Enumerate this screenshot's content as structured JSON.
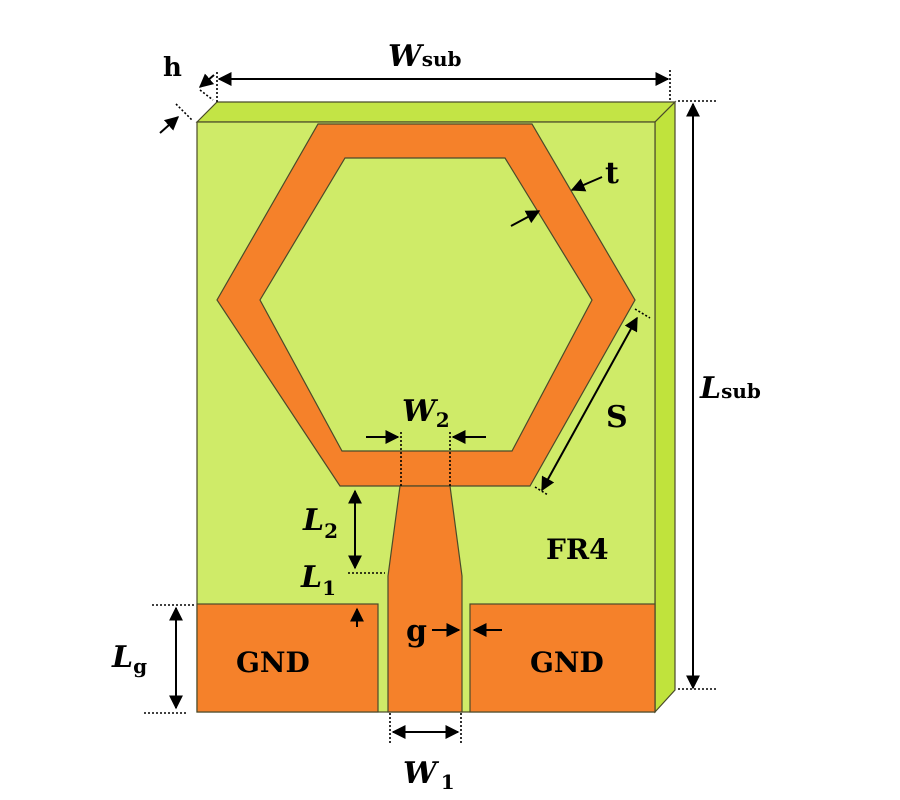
{
  "colors": {
    "substrate_face": "#cfeb68",
    "substrate_top": "#c3e445",
    "substrate_side": "#c0e33c",
    "copper": "#f5812a",
    "outline": "#4a4a2a"
  },
  "labels": {
    "h": "h",
    "w_sub": {
      "main": "W",
      "sub": "sub"
    },
    "l_sub": {
      "main": "L",
      "sub": "sub"
    },
    "t": "t",
    "s": "S",
    "w2": {
      "main": "W",
      "sub": "2"
    },
    "l2": {
      "main": "L",
      "sub": "2"
    },
    "l1": {
      "main": "L",
      "sub": "1"
    },
    "lg": {
      "main": "L",
      "sub": "g"
    },
    "w1": {
      "main": "W",
      "sub": "1"
    },
    "g": "g",
    "fr4": "FR4",
    "gnd_left": "GND",
    "gnd_right": "GND"
  }
}
